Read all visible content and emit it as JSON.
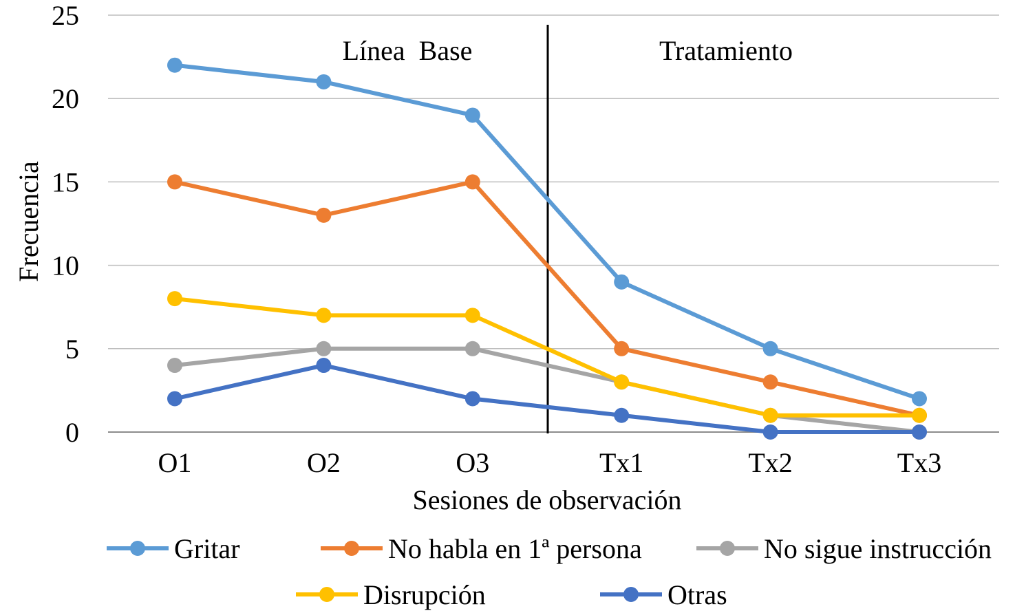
{
  "chart_data": {
    "type": "line",
    "title": "",
    "xlabel": "Sesiones de observación",
    "ylabel": "Frecuencia",
    "categories": [
      "O1",
      "O2",
      "O3",
      "Tx1",
      "Tx2",
      "Tx3"
    ],
    "ylim": [
      0,
      25
    ],
    "yticks": [
      0,
      5,
      10,
      15,
      20,
      25
    ],
    "grid": true,
    "legend_position": "bottom",
    "phase_divider_after_category": "O3",
    "annotations": [
      {
        "text": "Línea  Base",
        "phase": "baseline"
      },
      {
        "text": "Tratamiento",
        "phase": "treatment"
      }
    ],
    "series": [
      {
        "name": "Gritar",
        "color": "#5B9BD5",
        "values": [
          22,
          21,
          19,
          9,
          5,
          2
        ]
      },
      {
        "name": "No habla en 1ª persona",
        "color": "#ED7D31",
        "values": [
          15,
          13,
          15,
          5,
          3,
          1
        ]
      },
      {
        "name": "No sigue instrucción",
        "color": "#A5A5A5",
        "values": [
          4,
          5,
          5,
          3,
          1,
          0
        ]
      },
      {
        "name": "Disrupción",
        "color": "#FFC000",
        "values": [
          8,
          7,
          7,
          3,
          1,
          1
        ]
      },
      {
        "name": "Otras",
        "color": "#4472C4",
        "values": [
          2,
          4,
          2,
          1,
          0,
          0
        ]
      }
    ]
  }
}
